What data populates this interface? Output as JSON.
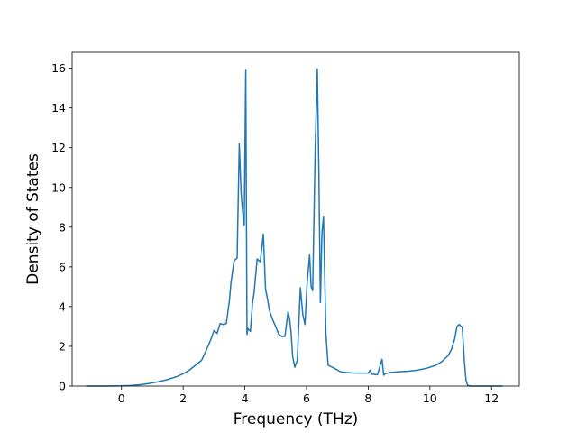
{
  "chart_data": {
    "type": "line",
    "title": "",
    "xlabel": "Frequency (THz)",
    "ylabel": "Density of States",
    "xlim": [
      -1.6,
      12.9
    ],
    "ylim": [
      0,
      16.8
    ],
    "xticks": [
      0,
      2,
      4,
      6,
      8,
      10,
      12
    ],
    "yticks": [
      0,
      2,
      4,
      6,
      8,
      10,
      12,
      14,
      16
    ],
    "grid": false,
    "colors": {
      "line": "#1f77b4",
      "axes": "#000000",
      "background": "#ffffff"
    },
    "series": [
      {
        "x": [
          -1.15,
          -0.5,
          0,
          0.3,
          0.6,
          0.9,
          1.2,
          1.5,
          1.8,
          2.0,
          2.2,
          2.4,
          2.6,
          2.75,
          2.9,
          3.0,
          3.1,
          3.2,
          3.3,
          3.4,
          3.5,
          3.55,
          3.65,
          3.75,
          3.82,
          3.88,
          3.92,
          3.98,
          4.03,
          4.07,
          4.1,
          4.18,
          4.25,
          4.3,
          4.4,
          4.5,
          4.6,
          4.67,
          4.72,
          4.8,
          4.9,
          5.0,
          5.1,
          5.2,
          5.3,
          5.4,
          5.45,
          5.5,
          5.55,
          5.62,
          5.7,
          5.8,
          5.88,
          5.95,
          6.02,
          6.1,
          6.15,
          6.2,
          6.28,
          6.35,
          6.4,
          6.45,
          6.5,
          6.55,
          6.63,
          6.7,
          6.9,
          7.1,
          7.3,
          7.5,
          7.7,
          8.0,
          8.06,
          8.12,
          8.3,
          8.45,
          8.5,
          8.55,
          8.7,
          9.0,
          9.3,
          9.6,
          9.9,
          10.2,
          10.4,
          10.6,
          10.7,
          10.8,
          10.88,
          10.95,
          11.05,
          11.12,
          11.17,
          11.22,
          11.3,
          11.5,
          12.0,
          12.35
        ],
        "y": [
          0.0,
          0.0,
          0.01,
          0.03,
          0.07,
          0.13,
          0.22,
          0.33,
          0.48,
          0.62,
          0.8,
          1.05,
          1.3,
          1.8,
          2.35,
          2.8,
          2.65,
          3.15,
          3.1,
          3.15,
          4.3,
          5.2,
          6.3,
          6.45,
          12.2,
          9.7,
          8.9,
          8.1,
          15.9,
          2.6,
          2.9,
          2.75,
          4.2,
          4.7,
          6.4,
          6.25,
          7.65,
          4.9,
          4.5,
          3.8,
          3.35,
          3.0,
          2.6,
          2.5,
          2.5,
          3.75,
          3.4,
          2.7,
          1.5,
          0.95,
          1.3,
          4.95,
          3.6,
          3.1,
          5.2,
          6.6,
          5.0,
          4.8,
          11.8,
          15.95,
          10.8,
          4.2,
          7.7,
          8.55,
          2.6,
          1.05,
          0.9,
          0.72,
          0.68,
          0.66,
          0.65,
          0.65,
          0.8,
          0.6,
          0.57,
          1.35,
          0.55,
          0.62,
          0.68,
          0.72,
          0.75,
          0.8,
          0.9,
          1.05,
          1.25,
          1.55,
          1.85,
          2.35,
          3.0,
          3.1,
          2.95,
          1.2,
          0.3,
          0.05,
          0.0,
          0.0,
          0.0,
          0.0
        ]
      }
    ]
  }
}
